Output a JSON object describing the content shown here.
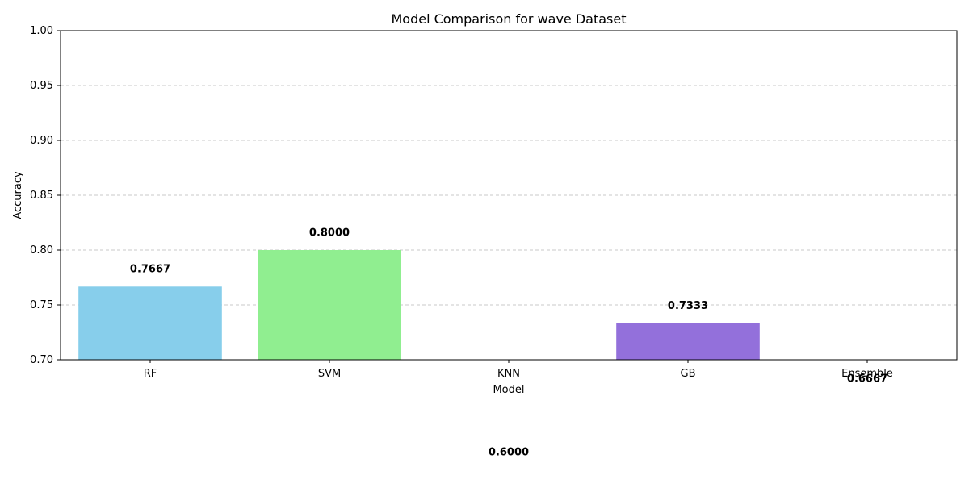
{
  "chart_data": {
    "type": "bar",
    "title": "Model Comparison for wave Dataset",
    "xlabel": "Model",
    "ylabel": "Accuracy",
    "categories": [
      "RF",
      "SVM",
      "KNN",
      "GB",
      "Ensemble"
    ],
    "values": [
      0.7667,
      0.8,
      0.6,
      0.7333,
      0.6667
    ],
    "value_labels": [
      "0.7667",
      "0.8000",
      "0.6000",
      "0.7333",
      "0.6667"
    ],
    "colors": [
      "#87ceeb",
      "#90ee90",
      "#f08080",
      "#9370db",
      "#ffa500"
    ],
    "ylim": [
      0.7,
      1.0
    ],
    "yticks": [
      0.7,
      0.75,
      0.8,
      0.85,
      0.9,
      0.95,
      1.0
    ],
    "ytick_labels": [
      "0.70",
      "0.75",
      "0.80",
      "0.85",
      "0.90",
      "0.95",
      "1.00"
    ],
    "grid": "y-dashed",
    "legend": "none"
  }
}
